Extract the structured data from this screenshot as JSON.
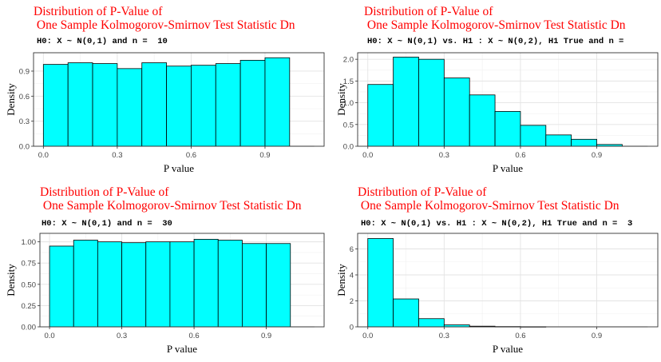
{
  "chart_data": [
    {
      "type": "bar",
      "title": "Distribution of P-Value of\n One Sample Kolmogorov-Smirnov Test Statistic Dn",
      "subtitle": "H0: X ~ N(0,1) and n =  10",
      "xlabel": "P value",
      "ylabel": "Density",
      "xlim": [
        -0.04,
        1.14
      ],
      "ylim": [
        0,
        1.12
      ],
      "xticks": [
        "0.0",
        "0.3",
        "0.6",
        "0.9"
      ],
      "xtick_values": [
        0,
        0.3,
        0.6,
        0.9
      ],
      "yticks": [
        "0.0",
        "0.3",
        "0.6",
        "0.9"
      ],
      "ytick_values": [
        0,
        0.3,
        0.6,
        0.9
      ],
      "bin_width": 0.1,
      "bin_starts": [
        0,
        0.1,
        0.2,
        0.3,
        0.4,
        0.5,
        0.6,
        0.7,
        0.8,
        0.9,
        1.0
      ],
      "values": [
        0.98,
        1.0,
        0.99,
        0.93,
        1.0,
        0.96,
        0.97,
        0.99,
        1.03,
        1.06,
        0.0
      ],
      "bar_color": "#00ffff",
      "grid": true
    },
    {
      "type": "bar",
      "title": "Distribution of P-Value of\n One Sample Kolmogorov-Smirnov Test Statistic Dn",
      "subtitle": "H0: X ~ N(0,1) vs. H1 : X ~ N(0,2), H1 True and n = ",
      "xlabel": "P value",
      "ylabel": "Density",
      "xlim": [
        -0.04,
        1.14
      ],
      "ylim": [
        0,
        2.15
      ],
      "xticks": [
        "0.0",
        "0.3",
        "0.6",
        "0.9"
      ],
      "xtick_values": [
        0,
        0.3,
        0.6,
        0.9
      ],
      "yticks": [
        "0.0",
        "0.5",
        "1.0",
        "1.5",
        "2.0"
      ],
      "ytick_values": [
        0,
        0.5,
        1.0,
        1.5,
        2.0
      ],
      "bin_width": 0.1,
      "bin_starts": [
        0,
        0.1,
        0.2,
        0.3,
        0.4,
        0.5,
        0.6,
        0.7,
        0.8,
        0.9,
        1.0
      ],
      "values": [
        1.42,
        2.05,
        2.0,
        1.57,
        1.18,
        0.8,
        0.48,
        0.26,
        0.16,
        0.04,
        0.0
      ],
      "bar_color": "#00ffff",
      "grid": true
    },
    {
      "type": "bar",
      "title": "Distribution of P-Value of\n One Sample Kolmogorov-Smirnov Test Statistic Dn",
      "subtitle": "H0: X ~ N(0,1) and n =  30",
      "xlabel": "P value",
      "ylabel": "Density",
      "xlim": [
        -0.04,
        1.14
      ],
      "ylim": [
        0,
        1.1
      ],
      "xticks": [
        "0.0",
        "0.3",
        "0.6",
        "0.9"
      ],
      "xtick_values": [
        0,
        0.3,
        0.6,
        0.9
      ],
      "yticks": [
        "0.00",
        "0.25",
        "0.50",
        "0.75",
        "1.00"
      ],
      "ytick_values": [
        0,
        0.25,
        0.5,
        0.75,
        1.0
      ],
      "bin_width": 0.1,
      "bin_starts": [
        0,
        0.1,
        0.2,
        0.3,
        0.4,
        0.5,
        0.6,
        0.7,
        0.8,
        0.9,
        1.0
      ],
      "values": [
        0.95,
        1.02,
        1.0,
        0.99,
        1.0,
        1.0,
        1.03,
        1.02,
        0.98,
        0.98,
        0.0
      ],
      "bar_color": "#00ffff",
      "grid": true
    },
    {
      "type": "bar",
      "title": "Distribution of P-Value of\n One Sample Kolmogorov-Smirnov Test Statistic Dn",
      "subtitle": "H0: X ~ N(0,1) vs. H1 : X ~ N(0,2), H1 True and n =  3",
      "xlabel": "P value",
      "ylabel": "Density",
      "xlim": [
        -0.04,
        1.14
      ],
      "ylim": [
        0,
        7.2
      ],
      "xticks": [
        "0.0",
        "0.3",
        "0.6",
        "0.9"
      ],
      "xtick_values": [
        0,
        0.3,
        0.6,
        0.9
      ],
      "yticks": [
        "0",
        "2",
        "4",
        "6"
      ],
      "ytick_values": [
        0,
        2,
        4,
        6
      ],
      "bin_width": 0.1,
      "bin_starts": [
        0,
        0.1,
        0.2,
        0.3,
        0.4,
        0.5,
        0.6,
        0.7,
        0.8,
        0.9,
        1.0
      ],
      "values": [
        6.8,
        2.15,
        0.63,
        0.15,
        0.05,
        0.02,
        0.01,
        0.0,
        0.0,
        0.0,
        0.0
      ],
      "bar_color": "#00ffff",
      "grid": true
    }
  ]
}
